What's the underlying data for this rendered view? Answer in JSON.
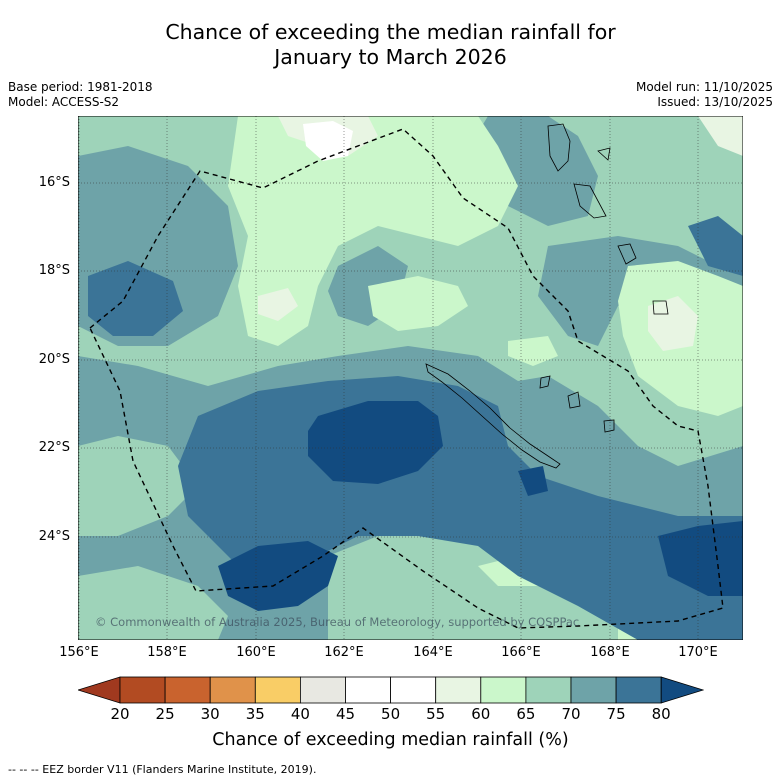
{
  "title": {
    "line1": "Chance of exceeding the median rainfall for",
    "line2": "January to March 2026"
  },
  "meta": {
    "base_period": "Base period: 1981-2018",
    "model": "Model: ACCESS-S2",
    "model_run": "Model run: 11/10/2025",
    "issued": "Issued: 13/10/2025"
  },
  "axes": {
    "lat_labels": [
      "16°S",
      "18°S",
      "20°S",
      "22°S",
      "24°S"
    ],
    "lon_labels": [
      "156°E",
      "158°E",
      "160°E",
      "162°E",
      "164°E",
      "166°E",
      "168°E",
      "170°E"
    ]
  },
  "copyright": "© Commonwealth of Australia 2025, Bureau of Meteorology, supported by COSPPac",
  "colorbar": {
    "ticks": [
      "20",
      "25",
      "30",
      "35",
      "40",
      "45",
      "50",
      "55",
      "60",
      "65",
      "70",
      "75",
      "80"
    ],
    "colors": [
      "#a0391f",
      "#b24b22",
      "#c9632e",
      "#e0924a",
      "#f9cd66",
      "#e8e8e2",
      "#ffffff",
      "#ffffff",
      "#e8f5e3",
      "#cbf7cb",
      "#9ed3b9",
      "#6ea3a8",
      "#3b7497",
      "#124b80"
    ],
    "title": "Chance of exceeding median rainfall (%)"
  },
  "footer": "--  --  -- EEZ border V11 (Flanders Marine Institute, 2019).",
  "colors": {
    "c50": "#ffffff",
    "c55": "#e8f5e3",
    "c60": "#cbf7cb",
    "c65": "#9ed3b9",
    "c70": "#6ea3a8",
    "c75": "#3b7497",
    "c80": "#124b80"
  }
}
